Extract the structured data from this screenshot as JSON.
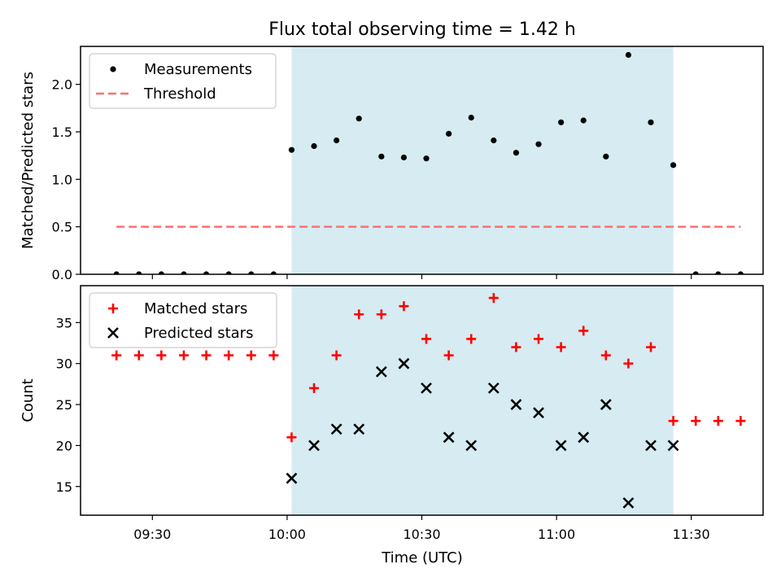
{
  "figure": {
    "title": "Flux total observing time = 1.42 h",
    "xlabel": "Time (UTC)"
  },
  "colors": {
    "shade": "#add8e6",
    "threshold": "#ff6f6f",
    "matched": "#ff0000",
    "predicted": "#000000",
    "measurement": "#000000"
  },
  "chart_data": [
    {
      "type": "scatter",
      "panel": "top",
      "ylabel": "Matched/Predicted stars",
      "xlim": [
        "09:14",
        "11:46"
      ],
      "ylim": [
        0,
        2.4
      ],
      "x_ticks": [
        "09:30",
        "10:00",
        "10:30",
        "11:00",
        "11:30"
      ],
      "y_ticks": [
        "0.0",
        "0.5",
        "1.0",
        "1.5",
        "2.0"
      ],
      "shaded_span": [
        "10:01",
        "11:26"
      ],
      "legend": {
        "location": "upper left",
        "entries": [
          "Measurements",
          "Threshold"
        ]
      },
      "series": [
        {
          "name": "Measurements",
          "marker": "dot",
          "x": [
            "09:22",
            "09:27",
            "09:32",
            "09:37",
            "09:42",
            "09:47",
            "09:52",
            "09:57",
            "10:01",
            "10:06",
            "10:11",
            "10:16",
            "10:21",
            "10:26",
            "10:31",
            "10:36",
            "10:41",
            "10:46",
            "10:51",
            "10:56",
            "11:01",
            "11:06",
            "11:11",
            "11:16",
            "11:21",
            "11:26",
            "11:31",
            "11:36",
            "11:41"
          ],
          "y": [
            0,
            0,
            0,
            0,
            0,
            0,
            0,
            0,
            1.31,
            1.35,
            1.41,
            1.64,
            1.24,
            1.23,
            1.22,
            1.48,
            1.65,
            1.41,
            1.28,
            1.37,
            1.6,
            1.62,
            1.24,
            2.31,
            1.6,
            1.15,
            0,
            0,
            0
          ]
        },
        {
          "name": "Threshold",
          "style": "dashed",
          "x": [
            "09:22",
            "11:41"
          ],
          "y": [
            0.5,
            0.5
          ]
        }
      ]
    },
    {
      "type": "scatter",
      "panel": "bottom",
      "ylabel": "Count",
      "xlim": [
        "09:14",
        "11:46"
      ],
      "ylim": [
        11.5,
        39.5
      ],
      "x_ticks": [
        "09:30",
        "10:00",
        "10:30",
        "11:00",
        "11:30"
      ],
      "y_ticks": [
        "15",
        "20",
        "25",
        "30",
        "35"
      ],
      "shaded_span": [
        "10:01",
        "11:26"
      ],
      "legend": {
        "location": "upper left",
        "entries": [
          "Matched stars",
          "Predicted stars"
        ]
      },
      "series": [
        {
          "name": "Matched stars",
          "marker": "plus",
          "x": [
            "09:22",
            "09:27",
            "09:32",
            "09:37",
            "09:42",
            "09:47",
            "09:52",
            "09:57",
            "10:01",
            "10:06",
            "10:11",
            "10:16",
            "10:21",
            "10:26",
            "10:31",
            "10:36",
            "10:41",
            "10:46",
            "10:51",
            "10:56",
            "11:01",
            "11:06",
            "11:11",
            "11:16",
            "11:21",
            "11:26",
            "11:31",
            "11:36",
            "11:41"
          ],
          "y": [
            31,
            31,
            31,
            31,
            31,
            31,
            31,
            31,
            21,
            27,
            31,
            36,
            36,
            37,
            33,
            31,
            33,
            38,
            32,
            33,
            32,
            34,
            31,
            30,
            32,
            23,
            23,
            23,
            23
          ]
        },
        {
          "name": "Predicted stars",
          "marker": "x",
          "x": [
            "10:01",
            "10:06",
            "10:11",
            "10:16",
            "10:21",
            "10:26",
            "10:31",
            "10:36",
            "10:41",
            "10:46",
            "10:51",
            "10:56",
            "11:01",
            "11:06",
            "11:11",
            "11:16",
            "11:21",
            "11:26"
          ],
          "y": [
            16,
            20,
            22,
            22,
            29,
            30,
            27,
            21,
            20,
            27,
            25,
            24,
            20,
            21,
            25,
            13,
            20,
            20
          ]
        }
      ]
    }
  ]
}
